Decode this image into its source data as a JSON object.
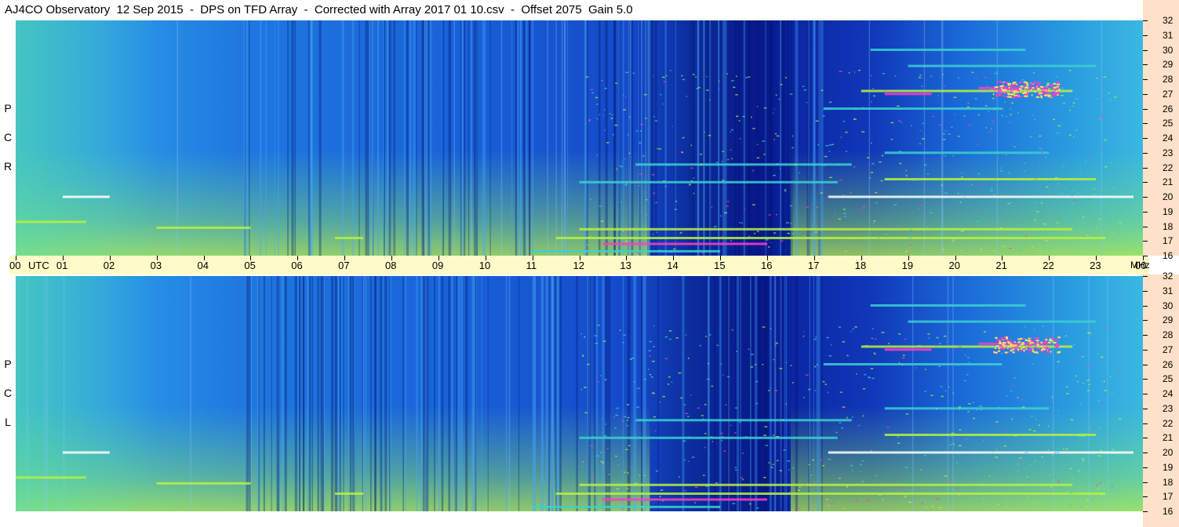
{
  "title": "AJ4CO Observatory  12 Sep 2015  -  DPS on TFD Array  -  Corrected with Array 2017 01 10.csv  -  Offset 2075  Gain 5.0",
  "chart_data": {
    "type": "heatmap",
    "title": "AJ4CO Observatory  12 Sep 2015  -  DPS on TFD Array  -  Corrected with Array 2017 01 10.csv  -  Offset 2075  Gain 5.0",
    "x_ticks": [
      "00",
      "01",
      "02",
      "03",
      "04",
      "05",
      "06",
      "07",
      "08",
      "09",
      "10",
      "11",
      "12",
      "13",
      "14",
      "15",
      "16",
      "17",
      "18",
      "19",
      "20",
      "21",
      "22",
      "23",
      "00"
    ],
    "x_unit": "UTC",
    "xlim": [
      0,
      24
    ],
    "y_ticks": [
      32,
      31,
      30,
      29,
      28,
      27,
      26,
      25,
      24,
      23,
      22,
      21,
      20,
      19,
      18,
      17,
      16
    ],
    "y_unit": "MHz",
    "ylim": [
      16,
      32
    ],
    "panels": [
      {
        "label": "RCP",
        "letters": [
          "R",
          "C",
          "P"
        ]
      },
      {
        "label": "LCP",
        "letters": [
          "L",
          "C",
          "P"
        ]
      }
    ],
    "colors": {
      "low": "#000a7a",
      "mid_low": "#0a3fd8",
      "mid": "#1e8ce8",
      "mid_high": "#3bd0d0",
      "high": "#b8f040",
      "peak": "#ff3cc8"
    }
  }
}
